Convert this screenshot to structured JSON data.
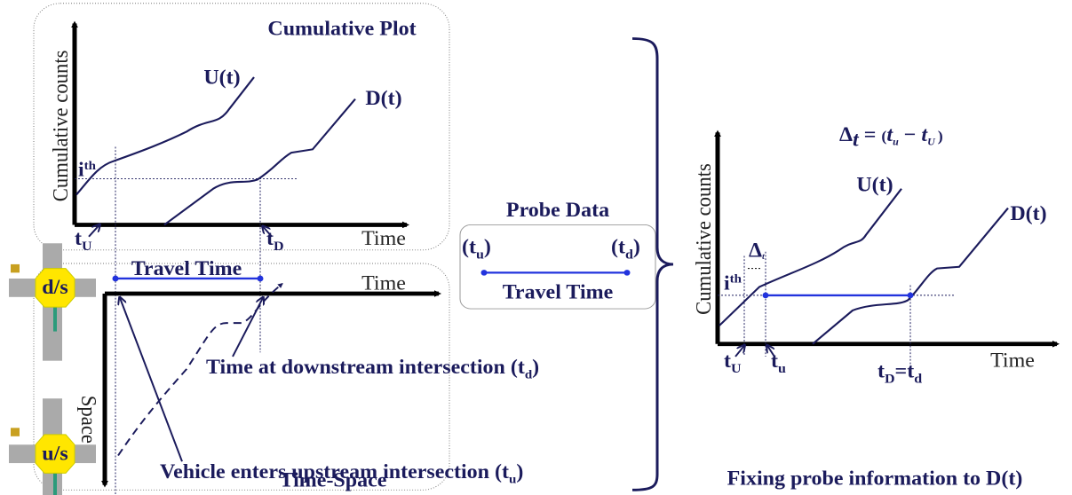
{
  "cumulative_plot": {
    "title": "Cumulative Plot",
    "y_label": "Cumulative counts",
    "x_label": "Time",
    "curves": [
      "U(t)",
      "D(t)"
    ],
    "i_label": {
      "base": "i",
      "sup": "th"
    },
    "t_up": {
      "base": "t",
      "sub": "U"
    },
    "t_down": {
      "base": "t",
      "sub": "D"
    }
  },
  "time_space": {
    "title": "Time-Space",
    "x_label": "Time",
    "y_label": "Space",
    "travel_time": "Travel Time",
    "downstream_note": {
      "text": "Time at downstream intersection (t",
      "sub": "d",
      "close": ")"
    },
    "upstream_note": {
      "text": "Vehicle enters upstream intersection (t",
      "sub": "u",
      "close": ")"
    },
    "signals": [
      "d/s",
      "u/s"
    ]
  },
  "probe_data": {
    "title": "Probe Data",
    "start": {
      "open": "(t",
      "sub": "u",
      "close": ")"
    },
    "end": {
      "open": "(t",
      "sub": "d",
      "close": ")"
    },
    "label": "Travel Time"
  },
  "fixed_plot": {
    "formula": {
      "delta": "Δ",
      "t": "t",
      "eq": "=",
      "open": "(",
      "t1": "t",
      "s1": "u",
      "minus": "−",
      "t2": "t",
      "s2": "U",
      "close": ")"
    },
    "y_label": "Cumulative counts",
    "x_label": "Time",
    "curves": [
      "U(t)",
      "D(t)"
    ],
    "delta_label": {
      "delta": "Δ",
      "t": "t"
    },
    "i_label": {
      "base": "i",
      "sup": "th"
    },
    "t_up": {
      "base": "t",
      "sub": "U"
    },
    "t_probe": {
      "base": "t",
      "sub": "u"
    },
    "t_down": {
      "base": "t",
      "sub": "D",
      "eq": "=",
      "base2": "t",
      "sub2": "d"
    },
    "caption": "Fixing probe information to D(t)"
  }
}
